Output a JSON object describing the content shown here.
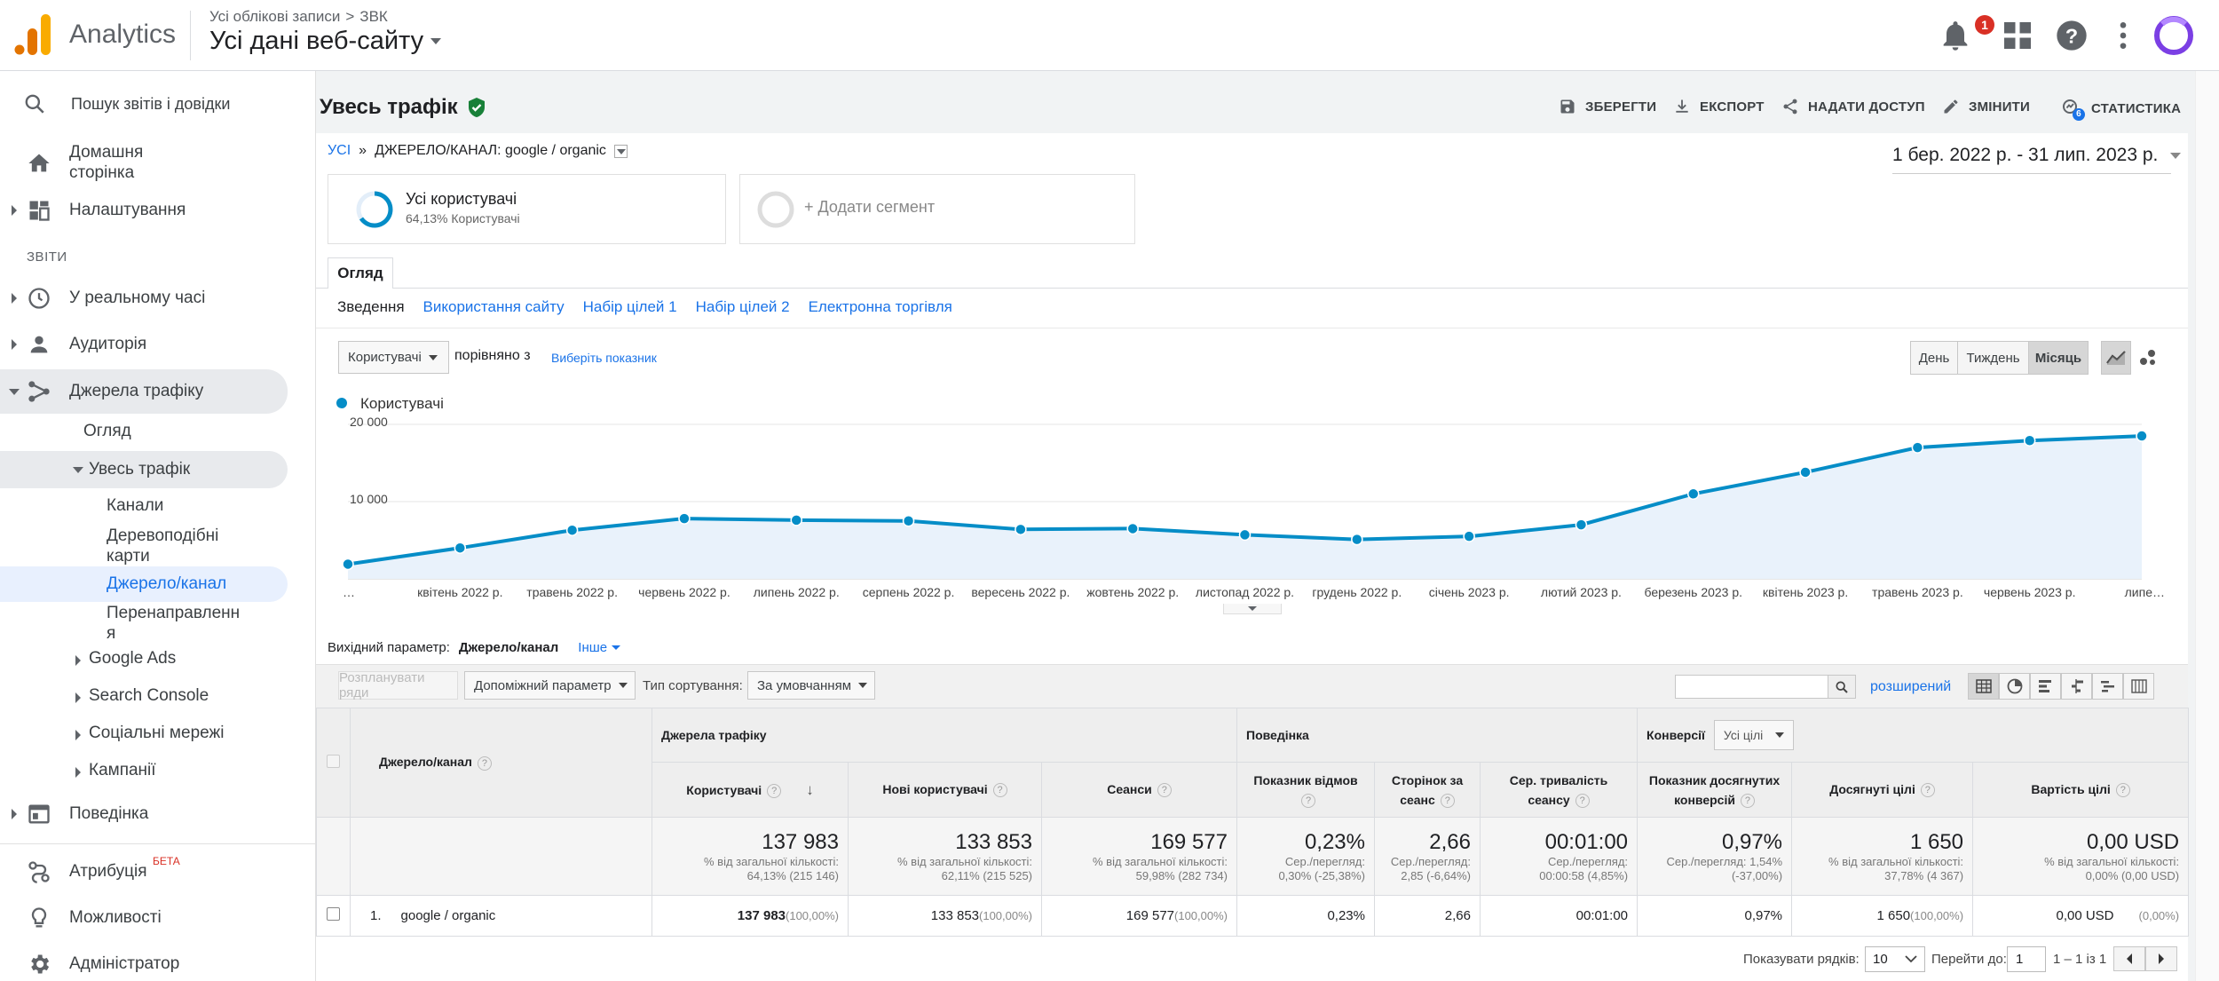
{
  "topbar": {
    "app_name": "Analytics",
    "account_path": "Усі облікові записи",
    "account_sep": ">",
    "account_name": "ЗВК",
    "view_name": "Усі дані веб-сайту",
    "notifications_count": "1"
  },
  "sidebar": {
    "search_placeholder": "Пошук звітів і довідки",
    "home_line1": "Домашня",
    "home_line2": "сторінка",
    "customization": "Налаштування",
    "reports_header": "ЗВІТИ",
    "realtime": "У реальному часі",
    "audience": "Аудиторія",
    "acquisition": "Джерела трафіку",
    "acq_overview": "Огляд",
    "all_traffic": "Увесь трафік",
    "channels": "Канали",
    "treemaps_line1": "Деревоподібні",
    "treemaps_line2": "карти",
    "source_medium": "Джерело/канал",
    "referrals_line1": "Перенаправленн",
    "referrals_line2": "я",
    "google_ads": "Google Ads",
    "search_console": "Search Console",
    "social": "Соціальні мережі",
    "campaigns": "Кампанії",
    "behavior": "Поведінка",
    "attribution": "Атрибуція",
    "beta": "БЕТА",
    "discover": "Можливості",
    "admin": "Адміністратор"
  },
  "report": {
    "title": "Увесь трафік",
    "save": "ЗБЕРЕГТИ",
    "export": "ЕКСПОРТ",
    "share": "НАДАТИ ДОСТУП",
    "edit": "ЗМІНИТИ",
    "insights": "СТАТИСТИКА",
    "insights_badge": "6",
    "crumb_all": "УСІ",
    "crumb_sep": "»",
    "crumb_filter": "ДЖЕРЕЛО/КАНАЛ: google / organic",
    "date_range": "1 бер. 2022 р. - 31 лип. 2023 р.",
    "segment_name": "Усі користувачі",
    "segment_sub": "64,13% Користувачі",
    "add_segment": "+ Додати сегмент",
    "tab_overview": "Огляд",
    "subtabs": [
      "Зведення",
      "Використання сайту",
      "Набір цілей 1",
      "Набір цілей 2",
      "Електронна торгівля"
    ],
    "metric_select": "Користувачі",
    "compare_with": "порівняно з",
    "choose_metric": "Виберіть показник",
    "period_day": "День",
    "period_week": "Тиждень",
    "period_month": "Місяць"
  },
  "chart_data": {
    "type": "line",
    "series": [
      {
        "name": "Користувачі",
        "values": [
          1900,
          4000,
          6300,
          7800,
          7600,
          7500,
          6400,
          6500,
          5700,
          5100,
          5500,
          7000,
          11000,
          13800,
          17000,
          17900,
          18500
        ]
      }
    ],
    "x": [
      "…",
      "квітень 2022 р.",
      "травень 2022 р.",
      "червень 2022 р.",
      "липень 2022 р.",
      "серпень 2022 р.",
      "вересень 2022 р.",
      "жовтень 2022 р.",
      "листопад 2022 р.",
      "грудень 2022 р.",
      "січень 2023 р.",
      "лютий 2023 р.",
      "березень 2023 р.",
      "квітень 2023 р.",
      "травень 2023 р.",
      "червень 2023 р.",
      "липе…"
    ],
    "yticks": [
      "20 000",
      "10 000"
    ],
    "ytick_values": [
      20000,
      10000
    ],
    "ylim": [
      0,
      20000
    ],
    "color": "#058dc7",
    "fill": "#e9f2fb",
    "grid": true,
    "legend": "top-left"
  },
  "table_controls": {
    "primary_dim_label": "Вихідний параметр:",
    "primary_dim": "Джерело/канал",
    "other": "Інше",
    "plot_rows": "Розпланувати ряди",
    "secondary_dim": "Допоміжний параметр",
    "sort_type_label": "Тип сортування:",
    "sort_type": "За умовчанням",
    "advanced": "розширений"
  },
  "table": {
    "dim_header": "Джерело/канал",
    "group_acq": "Джерела трафіку",
    "group_beh": "Поведінка",
    "group_conv": "Конверсії",
    "goal_select": "Усі цілі",
    "cols": [
      "Користувачі",
      "Нові користувачі",
      "Сеанси",
      "Показник відмов",
      "Сторінок за сеанс",
      "Сер. тривалість сеансу",
      "Показник досягнутих конверсій",
      "Досягнуті цілі",
      "Вартість цілі"
    ],
    "totals": [
      {
        "big": "137 983",
        "s1": "% від загальної кількості:",
        "s2": "64,13% (215 146)"
      },
      {
        "big": "133 853",
        "s1": "% від загальної кількості:",
        "s2": "62,11% (215 525)"
      },
      {
        "big": "169 577",
        "s1": "% від загальної кількості:",
        "s2": "59,98% (282 734)"
      },
      {
        "big": "0,23%",
        "s1": "Сер./перегляд:",
        "s2": "0,30% (-25,38%)"
      },
      {
        "big": "2,66",
        "s1": "Сер./перегляд:",
        "s2": "2,85 (-6,64%)"
      },
      {
        "big": "00:01:00",
        "s1": "Сер./перегляд:",
        "s2": "00:00:58 (4,85%)"
      },
      {
        "big": "0,97%",
        "s1": "Сер./перегляд: 1,54%",
        "s2": "(-37,00%)"
      },
      {
        "big": "1 650",
        "s1": "% від загальної кількості:",
        "s2": "37,78% (4 367)"
      },
      {
        "big": "0,00 USD",
        "s1": "% від загальної кількості:",
        "s2": "0,00% (0,00 USD)"
      }
    ],
    "row": {
      "index": "1.",
      "name": "google / organic",
      "users": "137 983",
      "users_pct": "(100,00%)",
      "new_users": "133 853",
      "new_users_pct": "(100,00%)",
      "sessions": "169 577",
      "sessions_pct": "(100,00%)",
      "bounce": "0,23%",
      "pages": "2,66",
      "duration": "00:01:00",
      "conv_rate": "0,97%",
      "goals": "1 650",
      "goals_pct": "(100,00%)",
      "goal_value": "0,00 USD",
      "goal_value_pct": "(0,00%)"
    }
  },
  "pagination": {
    "show_rows_label": "Показувати рядків:",
    "show_rows_value": "10",
    "goto_label": "Перейти до:",
    "goto_value": "1",
    "range": "1 – 1 із 1"
  }
}
